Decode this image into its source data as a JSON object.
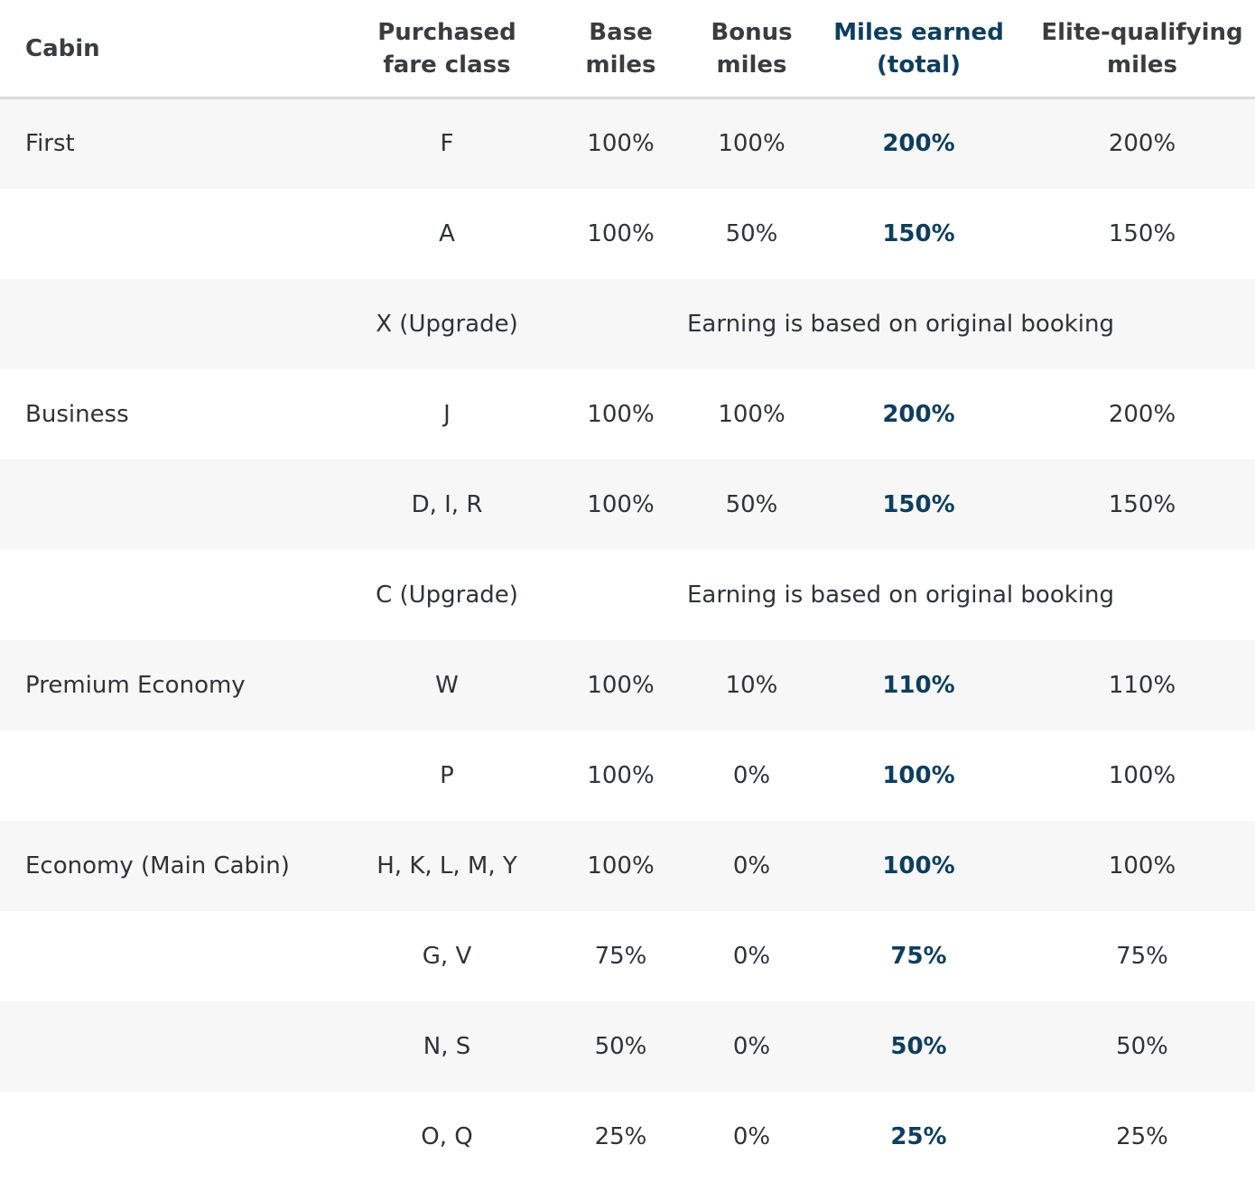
{
  "table": {
    "headers": {
      "cabin": "Cabin",
      "fare_class": [
        "Purchased",
        "fare class"
      ],
      "base": [
        "Base",
        "miles"
      ],
      "bonus": [
        "Bonus",
        "miles"
      ],
      "total": [
        "Miles earned",
        "(total)"
      ],
      "eqm": [
        "Elite-qualifying",
        "miles"
      ]
    },
    "rows": [
      {
        "cabin": "First",
        "fare": "F",
        "base": "100%",
        "bonus": "100%",
        "total": "200%",
        "eqm": "200%"
      },
      {
        "cabin": "",
        "fare": "A",
        "base": "100%",
        "bonus": "50%",
        "total": "150%",
        "eqm": "150%"
      },
      {
        "cabin": "",
        "fare": "X (Upgrade)",
        "note": "Earning is based on original booking"
      },
      {
        "cabin": "Business",
        "fare": "J",
        "base": "100%",
        "bonus": "100%",
        "total": "200%",
        "eqm": "200%"
      },
      {
        "cabin": "",
        "fare": "D, I, R",
        "base": "100%",
        "bonus": "50%",
        "total": "150%",
        "eqm": "150%"
      },
      {
        "cabin": "",
        "fare": "C (Upgrade)",
        "note": "Earning is based on original booking"
      },
      {
        "cabin": "Premium Economy",
        "fare": "W",
        "base": "100%",
        "bonus": "10%",
        "total": "110%",
        "eqm": "110%"
      },
      {
        "cabin": "",
        "fare": "P",
        "base": "100%",
        "bonus": "0%",
        "total": "100%",
        "eqm": "100%"
      },
      {
        "cabin": "Economy (Main Cabin)",
        "fare": "H, K, L, M, Y",
        "base": "100%",
        "bonus": "0%",
        "total": "100%",
        "eqm": "100%"
      },
      {
        "cabin": "",
        "fare": "G, V",
        "base": "75%",
        "bonus": "0%",
        "total": "75%",
        "eqm": "75%"
      },
      {
        "cabin": "",
        "fare": "N, S",
        "base": "50%",
        "bonus": "0%",
        "total": "50%",
        "eqm": "50%"
      },
      {
        "cabin": "",
        "fare": "O, Q",
        "base": "25%",
        "bonus": "0%",
        "total": "25%",
        "eqm": "25%"
      }
    ]
  },
  "colors": {
    "highlight": "#0e3e5e",
    "text": "#2f3337",
    "row_alt": "#f7f7f7",
    "header_rule": "#dcdcdc"
  }
}
